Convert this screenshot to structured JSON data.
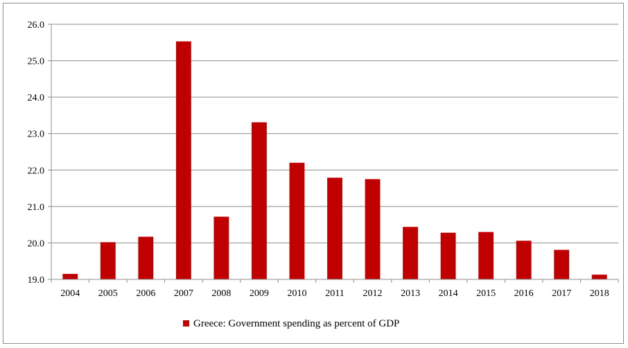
{
  "chart_data": {
    "type": "bar",
    "title": "",
    "xlabel": "",
    "ylabel": "",
    "categories": [
      "2004",
      "2005",
      "2006",
      "2007",
      "2008",
      "2009",
      "2010",
      "2011",
      "2012",
      "2013",
      "2014",
      "2015",
      "2016",
      "2017",
      "2018"
    ],
    "series": [
      {
        "name": "Greece: Government spending as percent of GDP",
        "values": [
          19.15,
          20.02,
          20.17,
          25.53,
          20.72,
          23.31,
          22.2,
          21.79,
          21.75,
          20.44,
          20.28,
          20.3,
          20.06,
          19.81,
          19.13
        ],
        "color": "#c00000"
      }
    ],
    "ylim": [
      19.0,
      26.0
    ],
    "yticks": [
      "19.0",
      "20.0",
      "21.0",
      "22.0",
      "23.0",
      "24.0",
      "25.0",
      "26.0"
    ],
    "grid": true,
    "legend_position": "bottom"
  }
}
